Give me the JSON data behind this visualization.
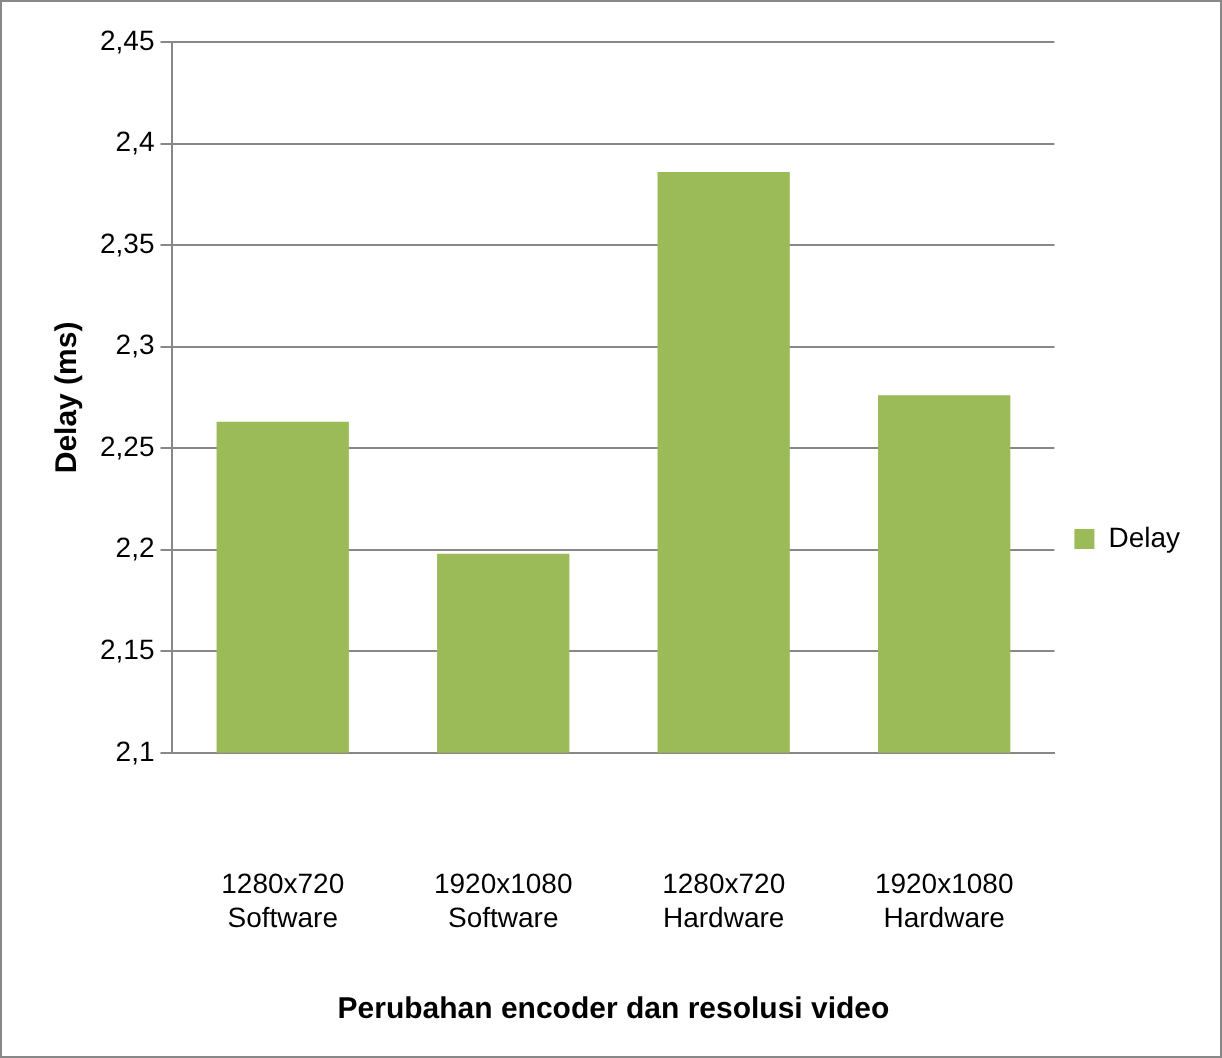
{
  "chart_data": {
    "type": "bar",
    "xlabel": "Perubahan encoder dan resolusi video",
    "ylabel": "Delay (ms)",
    "categories": [
      "1280x720\nSoftware",
      "1920x1080\nSoftware",
      "1280x720\nHardware",
      "1920x1080\nHardware"
    ],
    "series": [
      {
        "name": "Delay",
        "color": "#9bbb59",
        "values": [
          2.263,
          2.198,
          2.386,
          2.276
        ]
      }
    ],
    "ylim": [
      2.1,
      2.45
    ],
    "yticks": [
      {
        "value": 2.1,
        "label": "2,1"
      },
      {
        "value": 2.15,
        "label": "2,15"
      },
      {
        "value": 2.2,
        "label": "2,2"
      },
      {
        "value": 2.25,
        "label": "2,25"
      },
      {
        "value": 2.3,
        "label": "2,3"
      },
      {
        "value": 2.35,
        "label": "2,35"
      },
      {
        "value": 2.4,
        "label": "2,4"
      },
      {
        "value": 2.45,
        "label": "2,45"
      }
    ],
    "grid": "y",
    "legend": "right"
  }
}
